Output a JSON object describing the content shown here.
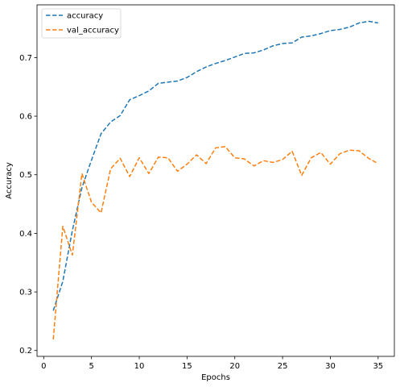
{
  "chart_data": {
    "type": "line",
    "xlabel": "Epochs",
    "ylabel": "Accuracy",
    "xlim": [
      -0.7,
      36.7
    ],
    "ylim": [
      0.19,
      0.79
    ],
    "xticks": [
      0,
      5,
      10,
      15,
      20,
      25,
      30,
      35
    ],
    "yticks": [
      0.2,
      0.3,
      0.4,
      0.5,
      0.6,
      0.7
    ],
    "ytick_labels": [
      "0.2",
      "0.3",
      "0.4",
      "0.5",
      "0.6",
      "0.7"
    ],
    "grid": false,
    "legend_position": "top-left",
    "line_style": "dashed",
    "x": [
      1,
      2,
      3,
      4,
      5,
      6,
      7,
      8,
      9,
      10,
      11,
      12,
      13,
      14,
      15,
      16,
      17,
      18,
      19,
      20,
      21,
      22,
      23,
      24,
      25,
      26,
      27,
      28,
      29,
      30,
      31,
      32,
      33,
      34,
      35
    ],
    "series": [
      {
        "name": "accuracy",
        "color": "#1f77b4",
        "values": [
          0.268,
          0.318,
          0.405,
          0.478,
          0.525,
          0.57,
          0.59,
          0.601,
          0.628,
          0.635,
          0.643,
          0.656,
          0.658,
          0.66,
          0.666,
          0.676,
          0.684,
          0.69,
          0.695,
          0.701,
          0.707,
          0.708,
          0.713,
          0.72,
          0.724,
          0.725,
          0.735,
          0.737,
          0.741,
          0.746,
          0.748,
          0.752,
          0.759,
          0.762,
          0.759
        ]
      },
      {
        "name": "val_accuracy",
        "color": "#ff7f0e",
        "values": [
          0.219,
          0.412,
          0.363,
          0.502,
          0.453,
          0.435,
          0.51,
          0.528,
          0.497,
          0.529,
          0.502,
          0.53,
          0.529,
          0.506,
          0.518,
          0.534,
          0.519,
          0.546,
          0.548,
          0.529,
          0.527,
          0.515,
          0.524,
          0.521,
          0.526,
          0.54,
          0.499,
          0.529,
          0.538,
          0.518,
          0.536,
          0.542,
          0.541,
          0.528,
          0.519
        ]
      }
    ]
  }
}
